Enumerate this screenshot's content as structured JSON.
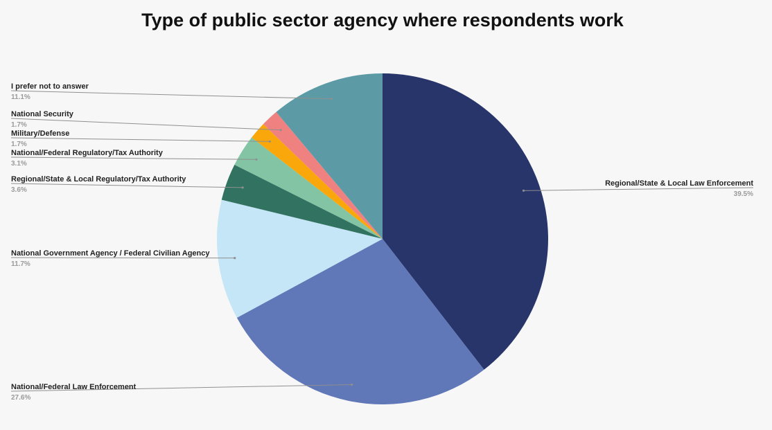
{
  "chart_data": {
    "type": "pie",
    "title": "Type of public sector agency where respondents work",
    "start_angle_deg": 0,
    "direction": "clockwise",
    "slices": [
      {
        "label": "Regional/State & Local Law Enforcement",
        "value": 39.5,
        "display": "39.5%",
        "color": "#28356b"
      },
      {
        "label": "National/Federal Law Enforcement",
        "value": 27.6,
        "display": "27.6%",
        "color": "#6077b8"
      },
      {
        "label": "National Government Agency / Federal Civilian Agency",
        "value": 11.7,
        "display": "11.7%",
        "color": "#c4e6f6"
      },
      {
        "label": "Regional/State & Local Regulatory/Tax Authority",
        "value": 3.6,
        "display": "3.6%",
        "color": "#317360"
      },
      {
        "label": "National/Federal Regulatory/Tax Authority",
        "value": 3.1,
        "display": "3.1%",
        "color": "#83c4a4"
      },
      {
        "label": "Military/Defense",
        "value": 1.7,
        "display": "1.7%",
        "color": "#f9a70a"
      },
      {
        "label": "National Security",
        "value": 1.7,
        "display": "1.7%",
        "color": "#ef8180"
      },
      {
        "label": "I prefer not to answer",
        "value": 11.1,
        "display": "11.1%",
        "color": "#5c9ba6"
      }
    ]
  }
}
